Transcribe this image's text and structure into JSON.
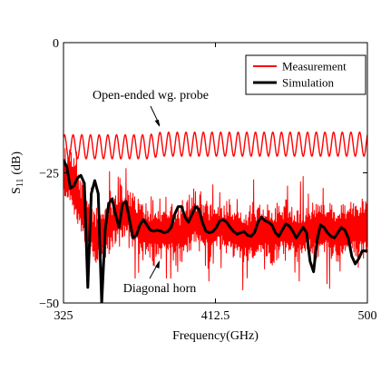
{
  "chart_data": {
    "type": "line",
    "title": "",
    "xlabel": "Frequency(GHz)",
    "ylabel": "S",
    "ylabel_sub": "11",
    "ylabel_unit": "(dB)",
    "xlim": [
      325,
      500
    ],
    "ylim": [
      -50,
      0
    ],
    "x_ticks": [
      325,
      412.5,
      500
    ],
    "x_tick_labels": [
      "325",
      "412.5",
      "500"
    ],
    "y_ticks": [
      0,
      -25,
      -50
    ],
    "y_tick_labels": [
      "0",
      "−25",
      "−50"
    ],
    "grid": false,
    "legend_position": "top-right",
    "annotations": [
      {
        "text": "Open-ended wg. probe",
        "target": [
          382,
          -16
        ]
      },
      {
        "text": "Diagonal horn",
        "target": [
          381,
          -41.5
        ]
      }
    ],
    "series": [
      {
        "name": "Measurement",
        "color": "#ff0000",
        "description_curves": [
          "Open-ended wg. probe",
          "Diagonal horn"
        ],
        "probe": {
          "x": [
            325,
            332,
            339,
            346,
            353,
            360,
            367,
            374,
            381,
            388,
            395,
            402,
            409,
            416,
            423,
            430,
            437,
            444,
            451,
            458,
            465,
            472,
            479,
            486,
            493,
            500
          ],
          "y": [
            -20,
            -20,
            -20,
            -20,
            -20,
            -20,
            -20,
            -20,
            -19.5,
            -19.5,
            -19.5,
            -19.5,
            -19.5,
            -19.5,
            -19.5,
            -19.5,
            -19.5,
            -19.5,
            -19.5,
            -19.5,
            -19.5,
            -19.5,
            -19.5,
            -19.5,
            -19.5,
            -19.5
          ],
          "ripple_db": 2.3
        },
        "horn": {
          "x": [
            325,
            330,
            335,
            340,
            345,
            350,
            355,
            360,
            365,
            370,
            375,
            380,
            385,
            390,
            395,
            400,
            405,
            410,
            415,
            420,
            425,
            430,
            435,
            440,
            445,
            450,
            455,
            460,
            465,
            470,
            475,
            480,
            485,
            490,
            495,
            500
          ],
          "y": [
            -25,
            -27,
            -32,
            -36,
            -38,
            -36,
            -34,
            -33,
            -34,
            -36,
            -37,
            -36,
            -36,
            -37,
            -36,
            -34,
            -35,
            -36,
            -35,
            -36,
            -37,
            -37,
            -36,
            -36,
            -37,
            -36,
            -36,
            -37,
            -36,
            -36,
            -36,
            -37,
            -36,
            -36,
            -36,
            -35
          ]
        }
      },
      {
        "name": "Simulation",
        "color": "#000000",
        "x": [
          325,
          327,
          329,
          331,
          333,
          335,
          337,
          339,
          341,
          343,
          345,
          347,
          349,
          351,
          353,
          355,
          357,
          359,
          361,
          363,
          365,
          367,
          369,
          371,
          373,
          375,
          377,
          379,
          381,
          383,
          385,
          387,
          389,
          391,
          393,
          395,
          397,
          399,
          401,
          403,
          405,
          407,
          409,
          411,
          413,
          415,
          417,
          419,
          421,
          423,
          425,
          427,
          429,
          431,
          433,
          435,
          437,
          439,
          441,
          443,
          445,
          447,
          449,
          451,
          453,
          455,
          457,
          459,
          461,
          463,
          465,
          467,
          469,
          471,
          473,
          475,
          477,
          479,
          481,
          483,
          485,
          487,
          489,
          491,
          493,
          495,
          497,
          499,
          500
        ],
        "y": [
          -22.5,
          -24,
          -28,
          -27.5,
          -26,
          -25.5,
          -27,
          -47,
          -29,
          -26.5,
          -29,
          -50,
          -36,
          -31,
          -30,
          -33,
          -35.5,
          -31,
          -30.5,
          -34,
          -37.5,
          -37,
          -35,
          -34,
          -35,
          -36,
          -36.2,
          -36,
          -36.2,
          -36.5,
          -36.3,
          -35.5,
          -33,
          -31.5,
          -31.5,
          -33.5,
          -34.5,
          -33,
          -31.5,
          -32,
          -34.5,
          -36.2,
          -36.5,
          -36.3,
          -35.5,
          -34.2,
          -34,
          -34.5,
          -35.5,
          -36.3,
          -36.8,
          -36.5,
          -36.3,
          -37,
          -37.2,
          -36.5,
          -34.5,
          -33.5,
          -34.2,
          -34.5,
          -35,
          -36.5,
          -37.2,
          -36,
          -34.8,
          -35.2,
          -36.2,
          -37.5,
          -36.5,
          -35.5,
          -36.5,
          -42,
          -44,
          -38,
          -35,
          -35.5,
          -36.5,
          -37.2,
          -37.5,
          -36.5,
          -35.5,
          -36,
          -37.5,
          -41,
          -42.5,
          -41.5,
          -40,
          -40,
          -40
        ]
      }
    ]
  }
}
